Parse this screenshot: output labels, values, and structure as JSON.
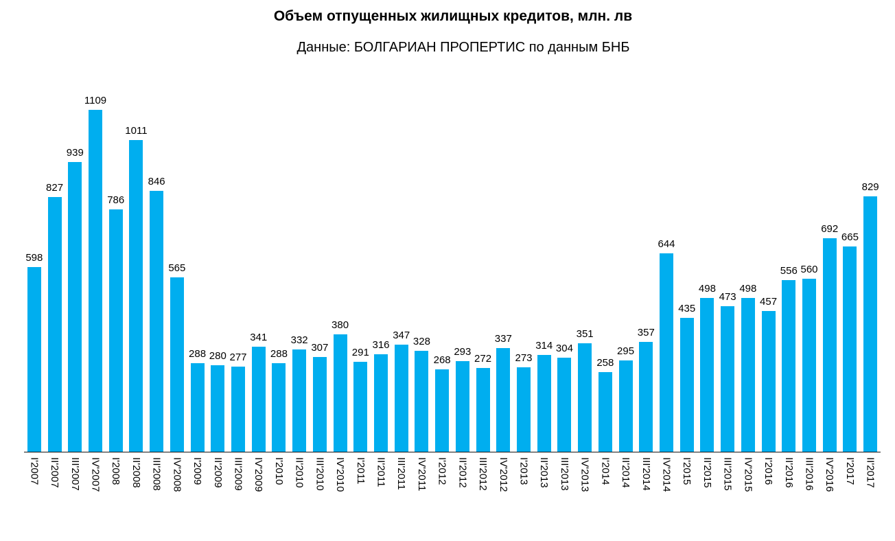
{
  "header": {
    "title": "Объем отпущенных жилищных кредитов, млн. лв",
    "subtitle": "Данные: БОЛГАРИАН ПРОПЕРТИС по данным БНБ"
  },
  "chart_data": {
    "type": "bar",
    "title": "Объем отпущенных жилищных кредитов, млн. лв",
    "subtitle": "Данные: БОЛГАРИАН ПРОПЕРТИС по данным БНБ",
    "categories": [
      "I'2007",
      "II'2007",
      "III'2007",
      "IV'2007",
      "I'2008",
      "II'2008",
      "III'2008",
      "IV'2008",
      "I'2009",
      "II'2009",
      "III'2009",
      "IV'2009",
      "I'2010",
      "II'2010",
      "III'2010",
      "IV'2010",
      "I'2011",
      "II'2011",
      "III'2011",
      "IV'2011",
      "I'2012",
      "II'2012",
      "III'2012",
      "IV'2012",
      "I'2013",
      "II'2013",
      "III'2013",
      "IV'2013",
      "I'2014",
      "II'2014",
      "III'2014",
      "IV'2014",
      "I'2015",
      "II'2015",
      "III'2015",
      "IV'2015",
      "I'2016",
      "II'2016",
      "III'2016",
      "IV'2016",
      "I'2017",
      "II'2017"
    ],
    "values": [
      598,
      827,
      939,
      1109,
      786,
      1011,
      846,
      565,
      288,
      280,
      277,
      341,
      288,
      332,
      307,
      380,
      291,
      316,
      347,
      328,
      268,
      293,
      272,
      337,
      273,
      314,
      304,
      351,
      258,
      295,
      357,
      644,
      435,
      498,
      473,
      498,
      457,
      556,
      560,
      692,
      665,
      829
    ],
    "xlabel": "",
    "ylabel": "",
    "ylim": [
      0,
      1200
    ],
    "grid": false,
    "legend": false,
    "y_axis_visible": false,
    "value_labels_position": "above bars",
    "x_tick_rotation": "vertical, reads top-to-bottom",
    "bar_color": "#00AEEF",
    "axis_color": "#141414",
    "text_color": "#000000"
  }
}
